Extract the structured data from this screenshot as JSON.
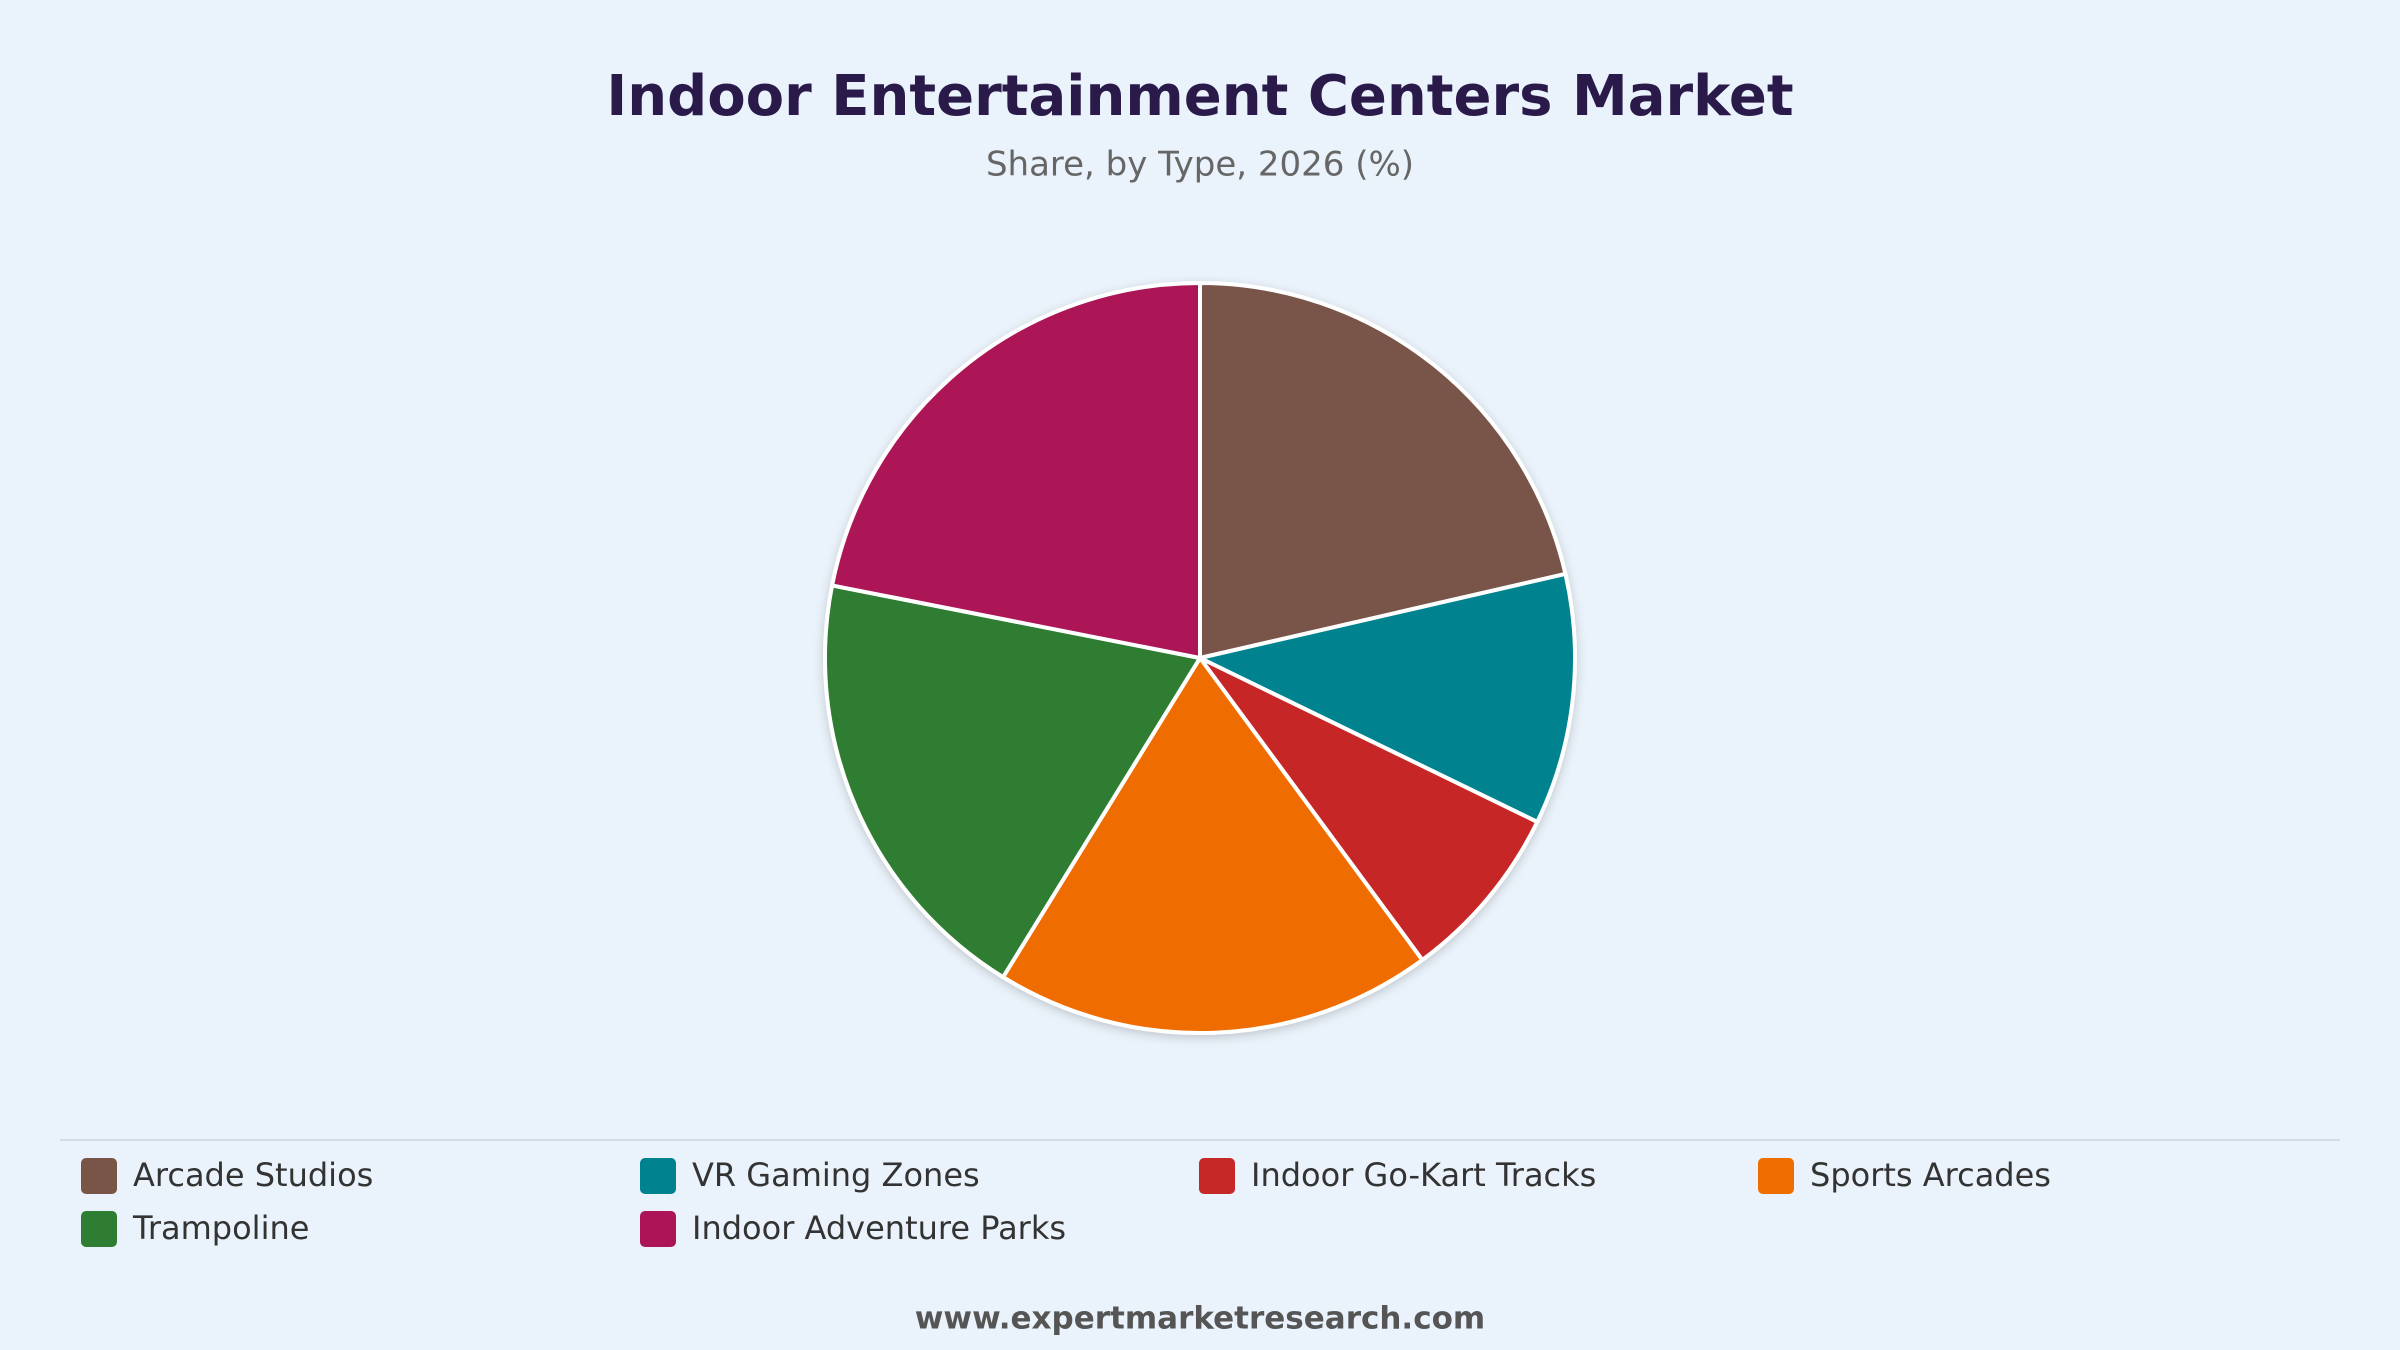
{
  "chart_data": {
    "type": "pie",
    "title": "Indoor Entertainment Centers Market",
    "subtitle": "Share, by Type, 2026 (%)",
    "categories": [
      "Arcade Studios",
      "VR Gaming Zones",
      "Indoor Go-Kart Tracks",
      "Sports Arcades",
      "Trampoline",
      "Indoor Adventure Parks"
    ],
    "values": [
      21.4,
      10.8,
      7.7,
      18.9,
      19.3,
      21.9
    ],
    "colors": [
      "#795548",
      "#00838f",
      "#c62828",
      "#ef6c00",
      "#2e7d32",
      "#ad1457"
    ],
    "legend": "bottom",
    "source": "www.expertmarketresearch.com"
  }
}
